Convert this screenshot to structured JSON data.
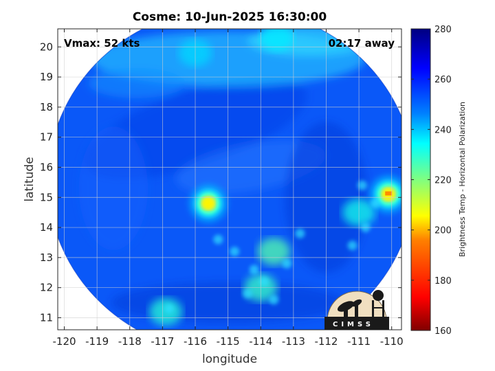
{
  "chart_data": {
    "type": "heatmap",
    "title": "Cosme: 10-Jun-2025 16:30:00",
    "xlabel": "longitude",
    "ylabel": "latitude",
    "xlim": [
      -120.2,
      -109.7
    ],
    "ylim": [
      10.6,
      20.6
    ],
    "xticks": [
      -120,
      -119,
      -118,
      -117,
      -116,
      -115,
      -114,
      -113,
      -112,
      -111,
      -110
    ],
    "yticks": [
      11,
      12,
      13,
      14,
      15,
      16,
      17,
      18,
      19,
      20
    ],
    "xtick_labels": [
      "-120",
      "-119",
      "-118",
      "-117",
      "-116",
      "-115",
      "-114",
      "-113",
      "-112",
      "-111",
      "-110"
    ],
    "ytick_labels": [
      "11",
      "12",
      "13",
      "14",
      "15",
      "16",
      "17",
      "18",
      "19",
      "20"
    ],
    "grid": true,
    "annotations": {
      "vmax": "Vmax: 52 kts",
      "time_offset": "02:17 away"
    },
    "swath": {
      "center_lon": -114.9,
      "center_lat": 15.55,
      "radius_deg": 5.6
    },
    "features": [
      {
        "lon": -115.6,
        "lat": 14.8,
        "value": 205
      },
      {
        "lon": -113.6,
        "lat": 13.2,
        "value": 225
      },
      {
        "lon": -114.0,
        "lat": 12.0,
        "value": 228
      },
      {
        "lon": -111.0,
        "lat": 14.5,
        "value": 232
      },
      {
        "lon": -110.1,
        "lat": 15.1,
        "value": 205
      },
      {
        "lon": -116.9,
        "lat": 11.2,
        "value": 230
      },
      {
        "lon": -116.0,
        "lat": 19.8,
        "value": 238
      },
      {
        "lon": -113.5,
        "lat": 20.3,
        "value": 236
      }
    ],
    "colorbar": {
      "label": "Brightness Temp - Horizontal Polarization",
      "min": 160,
      "max": 280,
      "ticks": [
        160,
        180,
        200,
        220,
        240,
        260,
        280
      ],
      "tick_labels": [
        "160",
        "180",
        "200",
        "220",
        "240",
        "260",
        "280"
      ]
    },
    "colormap": [
      "#800000",
      "#ff0000",
      "#ff8000",
      "#ffff00",
      "#80ff80",
      "#00ffff",
      "#0080ff",
      "#0000ff",
      "#000080"
    ]
  },
  "logo": {
    "text": "CIMSS"
  }
}
